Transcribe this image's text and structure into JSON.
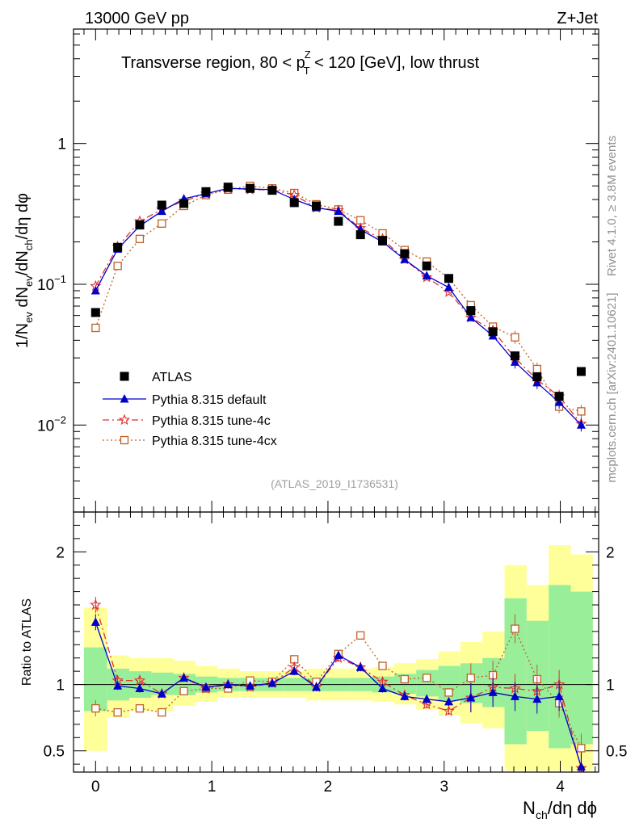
{
  "header": {
    "left": "13000 GeV pp",
    "right": "Z+Jet"
  },
  "side_labels": {
    "rivet": "Rivet 4.1.0, ≥ 3.8M events",
    "mcplots": "mcplots.cern.ch [arXiv:2401.10621]"
  },
  "chart_data": [
    {
      "type": "line",
      "panel": "main",
      "title": "Transverse region, 80 < p_T^Z < 120 [GeV], low thrust",
      "title_parts": {
        "before": "Transverse region, 80 < p",
        "sup": "Z",
        "sub": "T",
        "after": " < 120 [GeV], low thrust"
      },
      "ylabel": "1/N_ev dN_ev/dN_ch/dη dφ",
      "ylabel_parts": {
        "a": "1/N",
        "a_sub": "ev",
        "b": " dN",
        "b_sub": "ev",
        "c": "/dN",
        "c_sub": "ch",
        "d": "/dη dφ"
      },
      "xlabel": "N_ch/dη dφ",
      "yscale": "log",
      "xlim": [
        -0.19,
        4.33
      ],
      "ylim": [
        0.00241,
        6.5
      ],
      "x_ticks": [
        0,
        1,
        2,
        3,
        4
      ],
      "y_tick_labels": [
        {
          "value": 1,
          "base": "1",
          "exp": ""
        },
        {
          "value": 0.1,
          "base": "10",
          "exp": "−1"
        },
        {
          "value": 0.01,
          "base": "10",
          "exp": "−2"
        }
      ],
      "watermark": "(ATLAS_2019_I1736531)",
      "x": [
        0.0,
        0.19,
        0.38,
        0.57,
        0.76,
        0.95,
        1.14,
        1.33,
        1.52,
        1.71,
        1.9,
        2.09,
        2.28,
        2.47,
        2.66,
        2.85,
        3.04,
        3.23,
        3.42,
        3.61,
        3.8,
        3.99,
        4.18
      ],
      "series": [
        {
          "name": "ATLAS",
          "legend": "ATLAS",
          "color": "#000000",
          "marker": "filled-square",
          "values": [
            0.063,
            0.183,
            0.265,
            0.365,
            0.375,
            0.455,
            0.49,
            0.48,
            0.465,
            0.38,
            0.36,
            0.28,
            0.225,
            0.205,
            0.165,
            0.135,
            0.11,
            0.065,
            0.046,
            0.031,
            0.022,
            0.016,
            0.024
          ]
        },
        {
          "name": "Pythia 8.315 default",
          "legend": "Pythia 8.315 default",
          "color": "#0000cc",
          "marker": "filled-triangle",
          "line": "solid",
          "values": [
            0.09,
            0.178,
            0.26,
            0.33,
            0.405,
            0.44,
            0.48,
            0.475,
            0.47,
            0.4,
            0.35,
            0.33,
            0.245,
            0.2,
            0.15,
            0.115,
            0.095,
            0.058,
            0.043,
            0.028,
            0.02,
            0.0145,
            0.01
          ]
        },
        {
          "name": "Pythia 8.315 tune-4c",
          "legend": "Pythia 8.315 tune-4c",
          "color": "#e03030",
          "marker": "open-star",
          "line": "dashdot",
          "values": [
            0.097,
            0.185,
            0.28,
            0.34,
            0.39,
            0.44,
            0.48,
            0.47,
            0.47,
            0.43,
            0.35,
            0.335,
            0.25,
            0.21,
            0.15,
            0.112,
            0.088,
            0.058,
            0.047,
            0.03,
            0.021,
            0.016,
            0.0102
          ]
        },
        {
          "name": "Pythia 8.315 tune-4cx",
          "legend": "Pythia 8.315 tune-4cx",
          "color": "#c06028",
          "marker": "open-square",
          "line": "dotted",
          "values": [
            0.049,
            0.135,
            0.21,
            0.27,
            0.36,
            0.43,
            0.47,
            0.5,
            0.48,
            0.445,
            0.37,
            0.34,
            0.285,
            0.23,
            0.175,
            0.145,
            0.11,
            0.071,
            0.05,
            0.042,
            0.025,
            0.0135,
            0.0125
          ]
        }
      ]
    },
    {
      "type": "line",
      "panel": "ratio",
      "ylabel": "Ratio to ATLAS",
      "ylim": [
        0.34,
        2.3
      ],
      "y_ticks": [
        0.5,
        1,
        2
      ],
      "y_tick_labels": [
        "0.5",
        "1",
        "2"
      ],
      "reference_line": 1,
      "x": [
        0.0,
        0.19,
        0.38,
        0.57,
        0.76,
        0.95,
        1.14,
        1.33,
        1.52,
        1.71,
        1.9,
        2.09,
        2.28,
        2.47,
        2.66,
        2.85,
        3.04,
        3.23,
        3.42,
        3.61,
        3.8,
        3.99,
        4.18
      ],
      "bands": {
        "edges": [
          -0.1,
          0.1,
          0.29,
          0.48,
          0.67,
          0.86,
          1.05,
          1.24,
          1.43,
          1.62,
          1.81,
          2.0,
          2.19,
          2.38,
          2.57,
          2.76,
          2.95,
          3.14,
          3.33,
          3.52,
          3.71,
          3.9,
          4.09,
          4.28
        ],
        "green": [
          [
            0.8,
            1.28
          ],
          [
            0.88,
            1.12
          ],
          [
            0.9,
            1.1
          ],
          [
            0.92,
            1.09
          ],
          [
            0.92,
            1.08
          ],
          [
            0.94,
            1.06
          ],
          [
            0.95,
            1.05
          ],
          [
            0.95,
            1.05
          ],
          [
            0.95,
            1.05
          ],
          [
            0.95,
            1.05
          ],
          [
            0.95,
            1.05
          ],
          [
            0.95,
            1.05
          ],
          [
            0.95,
            1.05
          ],
          [
            0.94,
            1.06
          ],
          [
            0.93,
            1.08
          ],
          [
            0.91,
            1.11
          ],
          [
            0.88,
            1.14
          ],
          [
            0.86,
            1.16
          ],
          [
            0.83,
            1.2
          ],
          [
            0.55,
            1.65
          ],
          [
            0.65,
            1.48
          ],
          [
            0.52,
            1.75
          ],
          [
            0.55,
            1.7
          ]
        ],
        "yellow": [
          [
            0.5,
            1.58
          ],
          [
            0.75,
            1.22
          ],
          [
            0.8,
            1.2
          ],
          [
            0.8,
            1.2
          ],
          [
            0.84,
            1.18
          ],
          [
            0.87,
            1.14
          ],
          [
            0.9,
            1.12
          ],
          [
            0.9,
            1.1
          ],
          [
            0.9,
            1.1
          ],
          [
            0.9,
            1.1
          ],
          [
            0.88,
            1.12
          ],
          [
            0.88,
            1.12
          ],
          [
            0.88,
            1.12
          ],
          [
            0.87,
            1.13
          ],
          [
            0.85,
            1.16
          ],
          [
            0.81,
            1.19
          ],
          [
            0.77,
            1.25
          ],
          [
            0.71,
            1.32
          ],
          [
            0.67,
            1.4
          ],
          [
            0.35,
            1.9
          ],
          [
            0.35,
            1.75
          ],
          [
            0.35,
            2.05
          ],
          [
            0.35,
            1.98
          ]
        ]
      },
      "series": [
        {
          "name": "Pythia 8.315 default",
          "color": "#0000cc",
          "marker": "filled-triangle",
          "line": "solid",
          "values": [
            1.47,
            0.99,
            0.97,
            0.93,
            1.05,
            0.98,
            1.0,
            0.99,
            1.01,
            1.1,
            0.98,
            1.22,
            1.13,
            0.97,
            0.91,
            0.89,
            0.87,
            0.9,
            0.94,
            0.91,
            0.89,
            0.91,
            0.38
          ]
        },
        {
          "name": "Pythia 8.315 tune-4c",
          "color": "#e03030",
          "marker": "open-star",
          "line": "dashdot",
          "values": [
            1.6,
            1.03,
            1.03,
            0.93,
            1.05,
            0.97,
            1.0,
            0.98,
            1.01,
            1.13,
            0.98,
            1.2,
            1.13,
            1.02,
            0.92,
            0.85,
            0.8,
            0.9,
            0.98,
            0.97,
            0.95,
            1.0,
            0.37
          ]
        },
        {
          "name": "Pythia 8.315 tune-4cx",
          "color": "#c06028",
          "marker": "open-square",
          "line": "dotted",
          "values": [
            0.82,
            0.79,
            0.82,
            0.79,
            0.95,
            0.97,
            0.97,
            1.03,
            1.02,
            1.19,
            1.02,
            1.23,
            1.37,
            1.14,
            1.04,
            1.05,
            0.94,
            1.05,
            1.07,
            1.42,
            1.04,
            0.86,
            0.52
          ]
        }
      ]
    }
  ]
}
